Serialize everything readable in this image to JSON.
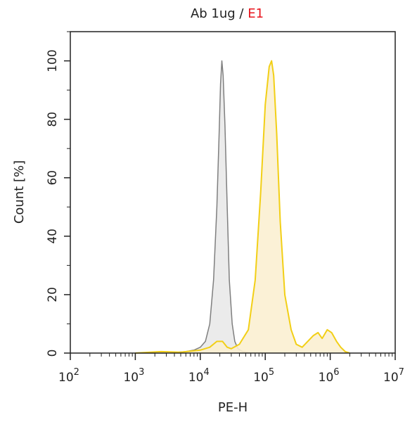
{
  "chart_data": {
    "type": "area",
    "title_prefix": "Ab 1ug / ",
    "title_highlight": "E1",
    "title_prefix_color": "#222222",
    "title_highlight_color": "#e8141c",
    "xlabel": "PE-H",
    "ylabel": "Count [%]",
    "x_scale": "log",
    "xlim": [
      100,
      10000000
    ],
    "ylim": [
      0,
      110
    ],
    "x_ticks": [
      {
        "base": "10",
        "exp": "2",
        "value": 100
      },
      {
        "base": "10",
        "exp": "3",
        "value": 1000
      },
      {
        "base": "10",
        "exp": "4",
        "value": 10000
      },
      {
        "base": "10",
        "exp": "5",
        "value": 100000
      },
      {
        "base": "10",
        "exp": "6",
        "value": 1000000
      },
      {
        "base": "10",
        "exp": "7",
        "value": 10000000
      }
    ],
    "y_ticks": [
      "0",
      "20",
      "40",
      "60",
      "80",
      "100"
    ],
    "y_tick_values": [
      0,
      20,
      40,
      60,
      80,
      100
    ],
    "grid": false,
    "series": [
      {
        "line_color": "#7f7f7f",
        "fill_color": "#e9e9e9",
        "points": [
          [
            1000,
            0
          ],
          [
            3000,
            0
          ],
          [
            6000,
            0.5
          ],
          [
            8000,
            1
          ],
          [
            10000,
            2
          ],
          [
            12000,
            4
          ],
          [
            14000,
            10
          ],
          [
            16000,
            25
          ],
          [
            18000,
            50
          ],
          [
            19500,
            75
          ],
          [
            20500,
            92
          ],
          [
            21500,
            100
          ],
          [
            22500,
            95
          ],
          [
            24000,
            78
          ],
          [
            26000,
            50
          ],
          [
            28000,
            25
          ],
          [
            31000,
            10
          ],
          [
            34000,
            4
          ],
          [
            38000,
            1.5
          ],
          [
            45000,
            0.5
          ],
          [
            60000,
            0
          ]
        ]
      },
      {
        "line_color": "#f2cf16",
        "fill_color": "#fbf0d2",
        "points": [
          [
            1000,
            0
          ],
          [
            2500,
            0.5
          ],
          [
            5000,
            0.3
          ],
          [
            10000,
            1
          ],
          [
            14000,
            2
          ],
          [
            18000,
            4
          ],
          [
            22000,
            4
          ],
          [
            26000,
            2
          ],
          [
            30000,
            1.5
          ],
          [
            40000,
            3
          ],
          [
            55000,
            8
          ],
          [
            70000,
            25
          ],
          [
            85000,
            55
          ],
          [
            100000,
            85
          ],
          [
            115000,
            98
          ],
          [
            125000,
            100
          ],
          [
            135000,
            95
          ],
          [
            150000,
            75
          ],
          [
            170000,
            45
          ],
          [
            200000,
            20
          ],
          [
            250000,
            8
          ],
          [
            300000,
            3
          ],
          [
            370000,
            2
          ],
          [
            450000,
            4
          ],
          [
            550000,
            6
          ],
          [
            650000,
            7
          ],
          [
            750000,
            5
          ],
          [
            900000,
            8
          ],
          [
            1050000,
            7
          ],
          [
            1250000,
            4
          ],
          [
            1450000,
            2
          ],
          [
            1700000,
            0.5
          ],
          [
            2000000,
            0
          ]
        ]
      }
    ]
  }
}
